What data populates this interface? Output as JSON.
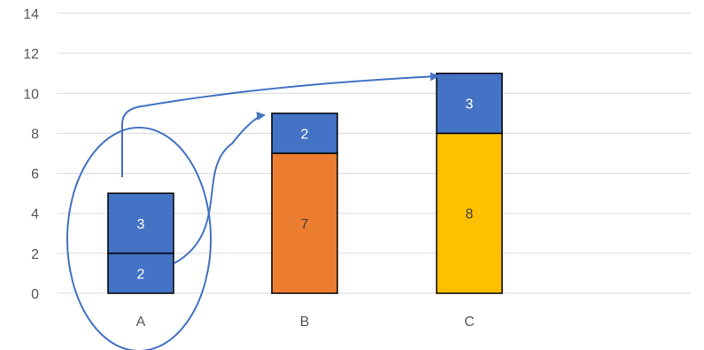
{
  "chart_data": {
    "type": "bar",
    "stacked": true,
    "categories": [
      "A",
      "B",
      "C"
    ],
    "ylim": [
      0,
      14
    ],
    "ytick_step": 2,
    "yticks": [
      "0",
      "2",
      "4",
      "6",
      "8",
      "10",
      "12",
      "14"
    ],
    "grid": true,
    "legend": "none",
    "bars": [
      {
        "category": "A",
        "segments": [
          {
            "value": 2,
            "label": "2",
            "color": "#4472c4",
            "label_color": "#ffffff"
          },
          {
            "value": 3,
            "label": "3",
            "color": "#4472c4",
            "label_color": "#ffffff"
          }
        ]
      },
      {
        "category": "B",
        "segments": [
          {
            "value": 7,
            "label": "7",
            "color": "#ed7d31",
            "label_color": "#404040"
          },
          {
            "value": 2,
            "label": "2",
            "color": "#4472c4",
            "label_color": "#ffffff"
          }
        ]
      },
      {
        "category": "C",
        "segments": [
          {
            "value": 8,
            "label": "8",
            "color": "#ffc000",
            "label_color": "#404040"
          },
          {
            "value": 3,
            "label": "3",
            "color": "#4472c4",
            "label_color": "#ffffff"
          }
        ]
      }
    ],
    "annotations": {
      "ellipse_around": "A",
      "arrows": [
        {
          "from": "A segment value 2",
          "to": "top of B",
          "color": "#4472c4"
        },
        {
          "from": "A segment value 3",
          "to": "top of C",
          "color": "#4472c4"
        }
      ],
      "annotation_color": "#4472c4"
    }
  }
}
